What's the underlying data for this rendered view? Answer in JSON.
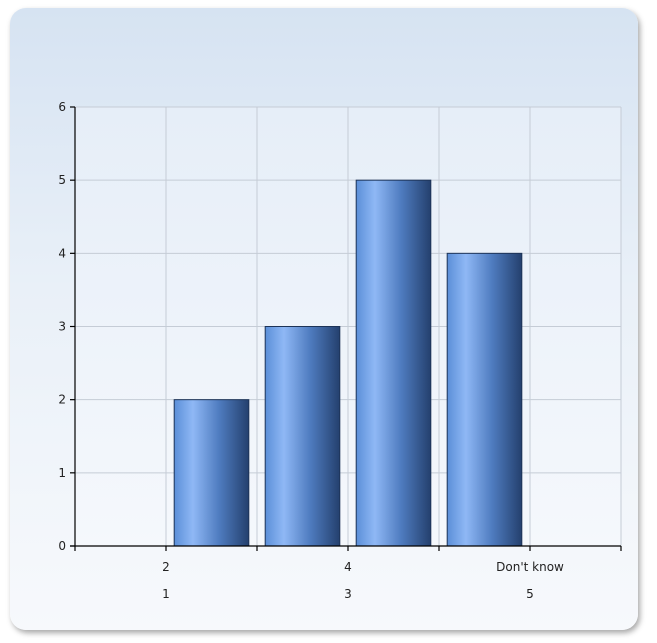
{
  "chart_data": {
    "type": "bar",
    "categories": [
      "1",
      "2",
      "3",
      "4",
      "5",
      "Don't know"
    ],
    "values": [
      0,
      2,
      3,
      5,
      4,
      0
    ],
    "title": "",
    "xlabel": "",
    "ylabel": "",
    "ylim": [
      0,
      6
    ],
    "yticks": [
      "0",
      "1",
      "2",
      "3",
      "4",
      "5",
      "6"
    ],
    "grid": true,
    "legend": "none",
    "bar_color_light": "#8fb8f5",
    "bar_color_mid": "#5b8fd8",
    "bar_color_dark": "#24406e"
  }
}
